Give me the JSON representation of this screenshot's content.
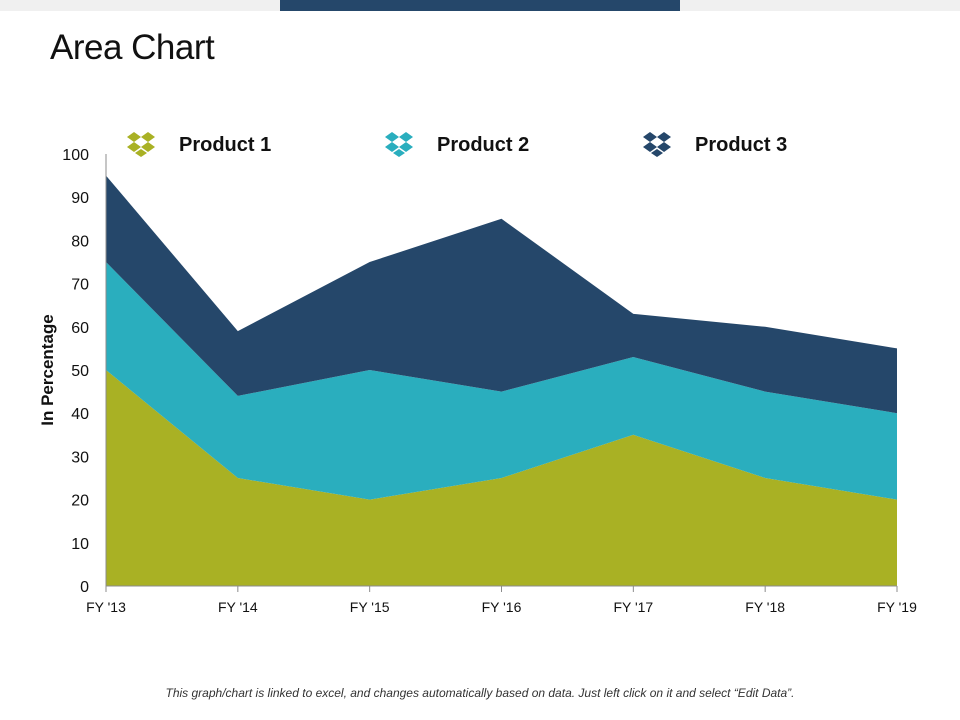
{
  "page": {
    "title": "Area Chart",
    "footnote": "This graph/chart is linked to excel, and changes automatically based on data. Just left click on it and select “Edit Data”."
  },
  "chart_data": {
    "type": "area",
    "stacked": true,
    "categories": [
      "FY '13",
      "FY '14",
      "FY '15",
      "FY '16",
      "FY '17",
      "FY '18",
      "FY '19"
    ],
    "series": [
      {
        "name": "Product 1",
        "values": [
          50,
          25,
          20,
          25,
          35,
          25,
          20
        ],
        "color": "#a9b124"
      },
      {
        "name": "Product 2",
        "values": [
          25,
          19,
          30,
          20,
          18,
          20,
          20
        ],
        "color": "#2aaebe"
      },
      {
        "name": "Product 3",
        "values": [
          20,
          15,
          25,
          40,
          10,
          15,
          15
        ],
        "color": "#25476a"
      }
    ],
    "ylabel": "In Percentage",
    "xlabel": "",
    "ylim": [
      0,
      100
    ],
    "yticks": [
      0,
      10,
      20,
      30,
      40,
      50,
      60,
      70,
      80,
      90,
      100
    ],
    "legend_position": "top",
    "legend_icon": "dropbox-icon"
  }
}
